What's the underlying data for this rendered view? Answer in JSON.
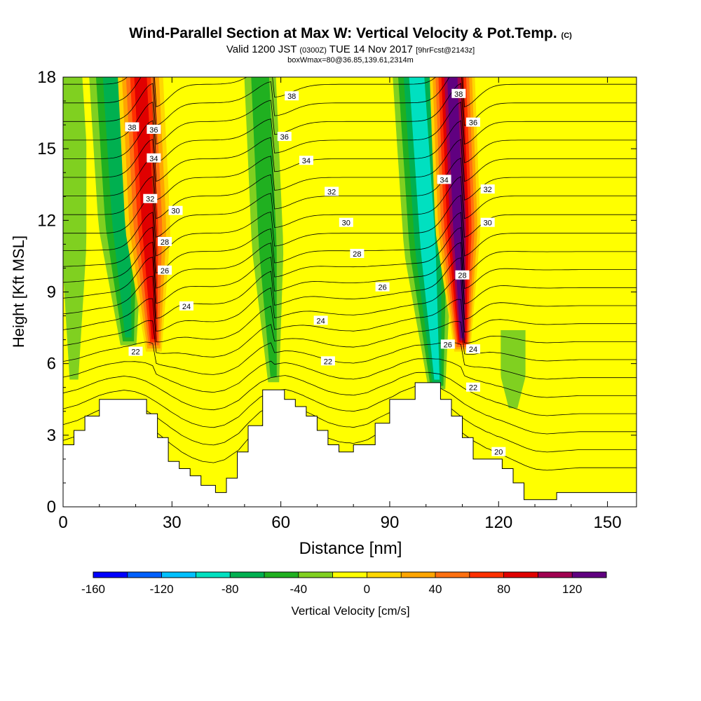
{
  "title": {
    "main": "Wind-Parallel Section at Max W: Vertical Velocity & Pot.Temp.",
    "main_suffix": "(C)",
    "valid_prefix": "Valid 1200 JST",
    "valid_zulu": "(0300Z)",
    "valid_date": "TUE 14 Nov 2017",
    "forecast": "[9hrFcst@2143z]",
    "subline": "boxWmax=80@36.85,139.61,2314m"
  },
  "chart_data": {
    "type": "heatmap",
    "xlabel": "Distance [nm]",
    "ylabel": "Height [Kft MSL]",
    "xlim": [
      0,
      158
    ],
    "ylim": [
      0,
      18
    ],
    "x_ticks": [
      0,
      30,
      60,
      90,
      120,
      150
    ],
    "y_ticks": [
      0,
      3,
      6,
      9,
      12,
      15,
      18
    ],
    "colorbar": {
      "title": "Vertical Velocity [cm/s]",
      "tick_labels": [
        -160,
        -120,
        -80,
        -40,
        0,
        40,
        80,
        120
      ],
      "bounds": [
        -160,
        140
      ],
      "step": 20,
      "colors": [
        "#0000ff",
        "#0060ff",
        "#00c0ff",
        "#00e0c0",
        "#00b050",
        "#20b020",
        "#80d020",
        "#ffff00",
        "#ffd700",
        "#ffa500",
        "#ff7010",
        "#ff3000",
        "#e00000",
        "#a00050",
        "#600080"
      ]
    },
    "series": [
      {
        "name": "Vertical Velocity",
        "units": "cm/s",
        "features": [
          {
            "x": 3,
            "bottom": 5,
            "top": 18,
            "w": -40,
            "tilt": 0
          },
          {
            "x": 18,
            "bottom": 6.6,
            "top": 18,
            "w": -80,
            "tilt": -5
          },
          {
            "x": 25,
            "bottom": 6.5,
            "top": 18,
            "w": 100,
            "tilt": -4
          },
          {
            "x": 58,
            "bottom": 5,
            "top": 18,
            "w": -50,
            "tilt": -4
          },
          {
            "x": 103,
            "bottom": 4.8,
            "top": 18,
            "w": -90,
            "tilt": -6
          },
          {
            "x": 110,
            "bottom": 6.5,
            "top": 18,
            "w": 130,
            "tilt": -3
          },
          {
            "x": 124,
            "bottom": 3.8,
            "top": 6.4,
            "w": -30,
            "tilt": 0
          }
        ]
      },
      {
        "name": "Pot.Temp.",
        "units": "C",
        "contour_interval": 1,
        "contour_levels": [
          19,
          20,
          21,
          22,
          23,
          24,
          25,
          26,
          27,
          28,
          29,
          30,
          31,
          32,
          33,
          34,
          35,
          36,
          37,
          38,
          39,
          40
        ],
        "contour_labels": [
          {
            "value": 38,
            "x": 19,
            "y": 15.9
          },
          {
            "value": 36,
            "x": 25,
            "y": 15.8
          },
          {
            "value": 34,
            "x": 25,
            "y": 14.6
          },
          {
            "value": 32,
            "x": 24,
            "y": 12.9
          },
          {
            "value": 30,
            "x": 31,
            "y": 12.4
          },
          {
            "value": 28,
            "x": 28,
            "y": 11.1
          },
          {
            "value": 26,
            "x": 28,
            "y": 9.9
          },
          {
            "value": 24,
            "x": 34,
            "y": 8.4
          },
          {
            "value": 22,
            "x": 20,
            "y": 6.5
          },
          {
            "value": 38,
            "x": 63,
            "y": 17.2
          },
          {
            "value": 36,
            "x": 61,
            "y": 15.5
          },
          {
            "value": 34,
            "x": 67,
            "y": 14.5
          },
          {
            "value": 32,
            "x": 74,
            "y": 13.2
          },
          {
            "value": 30,
            "x": 78,
            "y": 11.9
          },
          {
            "value": 28,
            "x": 81,
            "y": 10.6
          },
          {
            "value": 26,
            "x": 88,
            "y": 9.2
          },
          {
            "value": 24,
            "x": 71,
            "y": 7.8
          },
          {
            "value": 22,
            "x": 73,
            "y": 6.1
          },
          {
            "value": 38,
            "x": 109,
            "y": 17.3
          },
          {
            "value": 36,
            "x": 113,
            "y": 16.1
          },
          {
            "value": 34,
            "x": 105,
            "y": 13.7
          },
          {
            "value": 32,
            "x": 117,
            "y": 13.3
          },
          {
            "value": 30,
            "x": 117,
            "y": 11.9
          },
          {
            "value": 28,
            "x": 110,
            "y": 9.7
          },
          {
            "value": 26,
            "x": 106,
            "y": 6.8
          },
          {
            "value": 24,
            "x": 113,
            "y": 6.6
          },
          {
            "value": 22,
            "x": 113,
            "y": 5
          },
          {
            "value": 20,
            "x": 120,
            "y": 2.3
          }
        ]
      }
    ],
    "terrain_height": [
      [
        0,
        2.6
      ],
      [
        3,
        2.6
      ],
      [
        3,
        3.2
      ],
      [
        6,
        3.2
      ],
      [
        6,
        3.8
      ],
      [
        10,
        3.8
      ],
      [
        10,
        4.5
      ],
      [
        23,
        4.5
      ],
      [
        23,
        3.9
      ],
      [
        26,
        3.9
      ],
      [
        26,
        2.9
      ],
      [
        29,
        2.9
      ],
      [
        29,
        1.9
      ],
      [
        32,
        1.9
      ],
      [
        32,
        1.6
      ],
      [
        35,
        1.6
      ],
      [
        35,
        1.3
      ],
      [
        38,
        1.3
      ],
      [
        38,
        0.9
      ],
      [
        42,
        0.9
      ],
      [
        42,
        0.6
      ],
      [
        45,
        0.6
      ],
      [
        45,
        1.2
      ],
      [
        48,
        1.2
      ],
      [
        48,
        2.3
      ],
      [
        51,
        2.3
      ],
      [
        51,
        3.4
      ],
      [
        55,
        3.4
      ],
      [
        55,
        4.9
      ],
      [
        61,
        4.9
      ],
      [
        61,
        4.5
      ],
      [
        64,
        4.5
      ],
      [
        64,
        4.2
      ],
      [
        67,
        4.2
      ],
      [
        67,
        3.8
      ],
      [
        70,
        3.8
      ],
      [
        70,
        3.2
      ],
      [
        73,
        3.2
      ],
      [
        73,
        2.6
      ],
      [
        76,
        2.6
      ],
      [
        76,
        2.3
      ],
      [
        80,
        2.3
      ],
      [
        80,
        2.6
      ],
      [
        86,
        2.6
      ],
      [
        86,
        3.5
      ],
      [
        90,
        3.5
      ],
      [
        90,
        4.5
      ],
      [
        97,
        4.5
      ],
      [
        97,
        5.2
      ],
      [
        104,
        5.2
      ],
      [
        104,
        4.5
      ],
      [
        107,
        4.5
      ],
      [
        107,
        3.8
      ],
      [
        110,
        3.8
      ],
      [
        110,
        2.9
      ],
      [
        113,
        2.9
      ],
      [
        113,
        2
      ],
      [
        121,
        2
      ],
      [
        121,
        1.6
      ],
      [
        124,
        1.6
      ],
      [
        124,
        1
      ],
      [
        127,
        1
      ],
      [
        127,
        0.3
      ],
      [
        136,
        0.3
      ],
      [
        136,
        0.6
      ],
      [
        158,
        0.6
      ],
      [
        158,
        0
      ]
    ]
  }
}
